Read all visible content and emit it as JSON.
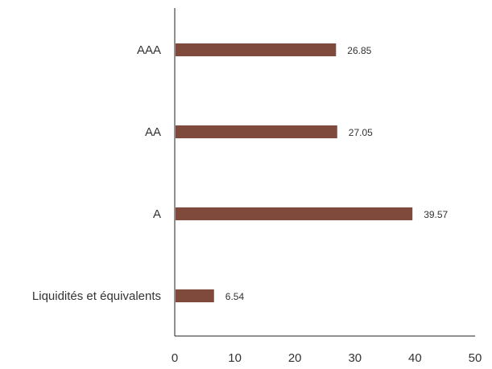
{
  "chart_data": {
    "type": "bar",
    "orientation": "horizontal",
    "categories": [
      "AAA",
      "AA",
      "A",
      "Liquidités et équivalents"
    ],
    "values": [
      26.85,
      27.05,
      39.57,
      6.54
    ],
    "value_labels": [
      "26.85",
      "27.05",
      "39.57",
      "6.54"
    ],
    "x_ticks": [
      "0",
      "10",
      "20",
      "30",
      "40",
      "50"
    ],
    "xlim": [
      0,
      50
    ],
    "grid": false,
    "legend": "none",
    "bar_color": "#7f4a3c",
    "axis_color": "#222222",
    "title": "",
    "xlabel": "",
    "ylabel": ""
  }
}
